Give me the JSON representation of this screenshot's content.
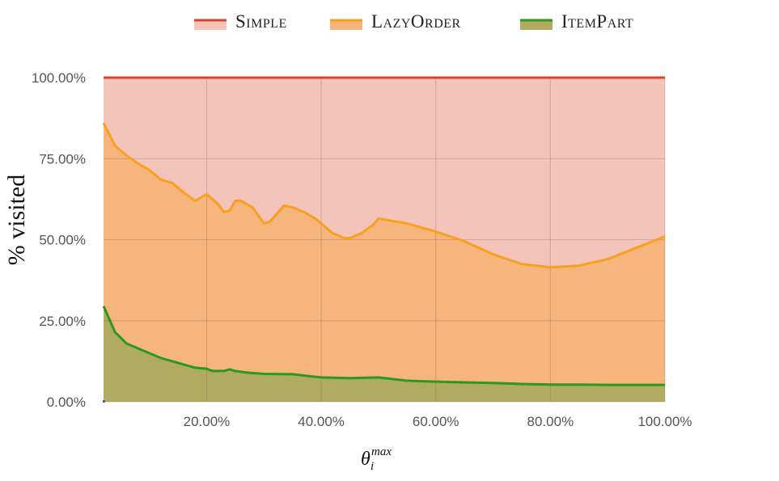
{
  "chart_data": {
    "type": "area",
    "title": "",
    "xlabel": {
      "base": "θ",
      "sub": "i",
      "sup": "max"
    },
    "ylabel": "% visited",
    "x_ticks": [
      "20.00%",
      "40.00%",
      "60.00%",
      "80.00%",
      "100.00%"
    ],
    "y_ticks": [
      "0.00%",
      "25.00%",
      "50.00%",
      "75.00%",
      "100.00%"
    ],
    "xlim": [
      2,
      100
    ],
    "ylim": [
      0,
      100
    ],
    "grid": true,
    "legend_position": "top",
    "series": [
      {
        "name": "Simple",
        "line_color": "#d9442b",
        "fill_color": "#f4c3ba",
        "points": [
          [
            2,
            100
          ],
          [
            100,
            100
          ]
        ]
      },
      {
        "name": "LazyOrder",
        "line_color": "#f8a11e",
        "fill_color": "#f5b57c",
        "points": [
          [
            2,
            86
          ],
          [
            4,
            79
          ],
          [
            6,
            76
          ],
          [
            8,
            73.5
          ],
          [
            10,
            71.5
          ],
          [
            12,
            68.5
          ],
          [
            14,
            67.5
          ],
          [
            16,
            64.5
          ],
          [
            18,
            62
          ],
          [
            20,
            64
          ],
          [
            22,
            61
          ],
          [
            23,
            58.5
          ],
          [
            24,
            59
          ],
          [
            25,
            62
          ],
          [
            26,
            62
          ],
          [
            28,
            60
          ],
          [
            30,
            55
          ],
          [
            31,
            55.5
          ],
          [
            32,
            57.5
          ],
          [
            33.5,
            60.5
          ],
          [
            35,
            60
          ],
          [
            37,
            58.5
          ],
          [
            39,
            56.5
          ],
          [
            42,
            52
          ],
          [
            44,
            50.5
          ],
          [
            45,
            50.5
          ],
          [
            47,
            52
          ],
          [
            49,
            54.5
          ],
          [
            50,
            56.5
          ],
          [
            55,
            55
          ],
          [
            60,
            52.5
          ],
          [
            65,
            49.5
          ],
          [
            70,
            45.5
          ],
          [
            75,
            42.5
          ],
          [
            80,
            41.5
          ],
          [
            85,
            42
          ],
          [
            90,
            44
          ],
          [
            95,
            47.5
          ],
          [
            100,
            51
          ]
        ]
      },
      {
        "name": "ItemPart",
        "line_color": "#2a9a1c",
        "fill_color": "#b1ab62",
        "points": [
          [
            2,
            29.5
          ],
          [
            4,
            21.5
          ],
          [
            6,
            18
          ],
          [
            8,
            16.5
          ],
          [
            10,
            15
          ],
          [
            12,
            13.5
          ],
          [
            14,
            12.5
          ],
          [
            16,
            11.5
          ],
          [
            18,
            10.5
          ],
          [
            20,
            10.2
          ],
          [
            21,
            9.5
          ],
          [
            23,
            9.5
          ],
          [
            24,
            10
          ],
          [
            25,
            9.5
          ],
          [
            27,
            9
          ],
          [
            30,
            8.6
          ],
          [
            35,
            8.5
          ],
          [
            40,
            7.5
          ],
          [
            45,
            7.3
          ],
          [
            50,
            7.5
          ],
          [
            55,
            6.5
          ],
          [
            60,
            6.2
          ],
          [
            65,
            6
          ],
          [
            70,
            5.8
          ],
          [
            75,
            5.5
          ],
          [
            80,
            5.3
          ],
          [
            85,
            5.3
          ],
          [
            90,
            5.2
          ],
          [
            95,
            5.2
          ],
          [
            100,
            5.2
          ]
        ]
      }
    ]
  }
}
